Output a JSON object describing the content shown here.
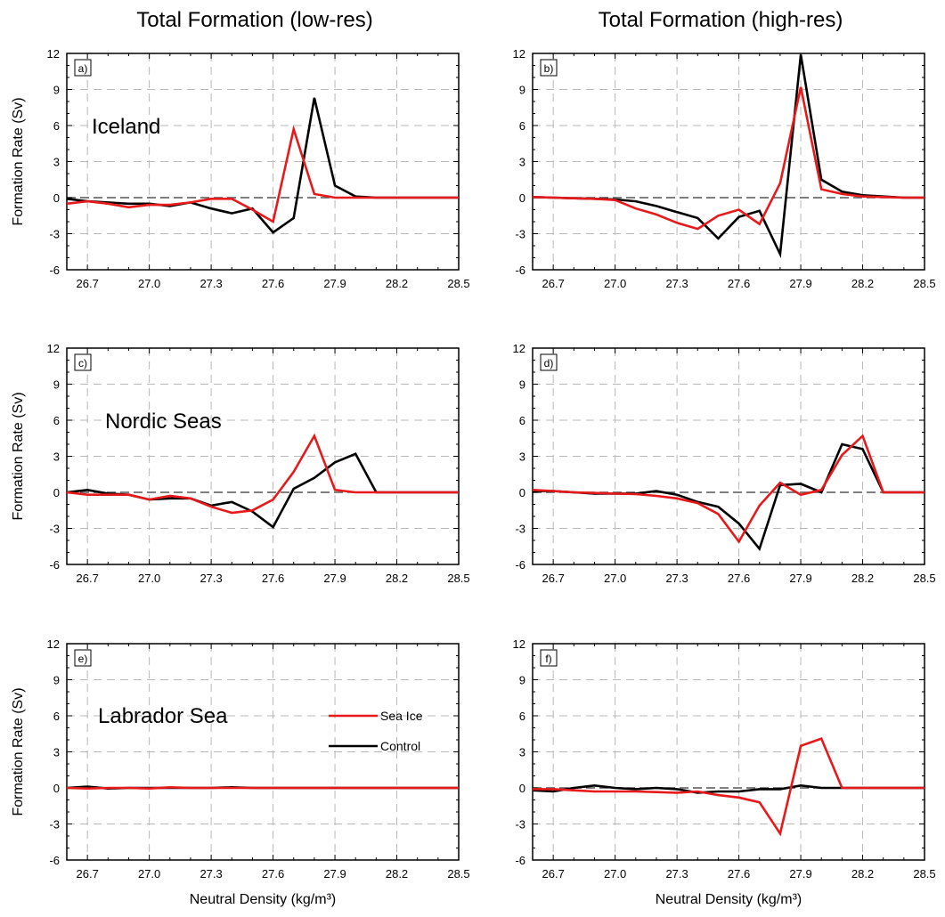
{
  "column_titles": [
    "Total Formation (low-res)",
    "Total Formation (high-res)"
  ],
  "colors": {
    "sea_ice": "#e8191a",
    "control": "#000000",
    "grid": "#b8b8b8",
    "zero_line": "#555555"
  },
  "legend": {
    "location": "panel e, right",
    "items": [
      {
        "label": "Sea Ice",
        "color": "#e8191a"
      },
      {
        "label": "Control",
        "color": "#000000"
      }
    ]
  },
  "chart_data": [
    {
      "type": "line",
      "panel": "a)",
      "region": "Iceland",
      "title": "",
      "xlabel": "",
      "ylabel": "Formation Rate (Sv)",
      "xlim": [
        26.6,
        28.5
      ],
      "ylim": [
        -6,
        12
      ],
      "xticks": [
        "26.7",
        "27.0",
        "27.3",
        "27.6",
        "27.9",
        "28.2",
        "28.5"
      ],
      "yticks": [
        "12",
        "9",
        "6",
        "3",
        "0",
        "-3",
        "-6"
      ],
      "x": [
        26.6,
        26.7,
        26.8,
        26.9,
        27.0,
        27.1,
        27.2,
        27.3,
        27.4,
        27.5,
        27.6,
        27.7,
        27.8,
        27.9,
        28.0,
        28.1,
        28.2,
        28.3,
        28.4,
        28.5
      ],
      "series": [
        {
          "name": "Sea Ice",
          "color": "#e8191a",
          "values": [
            -0.5,
            -0.3,
            -0.5,
            -0.8,
            -0.6,
            -0.6,
            -0.4,
            -0.1,
            -0.1,
            -1.0,
            -2.0,
            5.7,
            0.3,
            0,
            0,
            0,
            0,
            0,
            0,
            0
          ]
        },
        {
          "name": "Control",
          "color": "#000000",
          "values": [
            -0.1,
            -0.3,
            -0.4,
            -0.5,
            -0.5,
            -0.7,
            -0.4,
            -0.9,
            -1.3,
            -0.9,
            -2.9,
            -1.7,
            8.3,
            1.0,
            0.1,
            0,
            0,
            0,
            0,
            0
          ]
        }
      ]
    },
    {
      "type": "line",
      "panel": "b)",
      "region": "",
      "title": "",
      "xlabel": "",
      "ylabel": "",
      "xlim": [
        26.6,
        28.5
      ],
      "ylim": [
        -6,
        12
      ],
      "xticks": [
        "26.7",
        "27.0",
        "27.3",
        "27.6",
        "27.9",
        "28.2",
        "28.5"
      ],
      "yticks": [
        "12",
        "9",
        "6",
        "3",
        "0",
        "-3",
        "-6"
      ],
      "x": [
        26.6,
        26.7,
        26.8,
        26.9,
        27.0,
        27.1,
        27.2,
        27.3,
        27.4,
        27.5,
        27.6,
        27.7,
        27.8,
        27.9,
        28.0,
        28.1,
        28.2,
        28.3,
        28.4,
        28.5
      ],
      "series": [
        {
          "name": "Sea Ice",
          "color": "#e8191a",
          "values": [
            0.05,
            0.0,
            -0.05,
            -0.1,
            -0.2,
            -0.9,
            -1.4,
            -2.1,
            -2.6,
            -1.5,
            -1.0,
            -2.2,
            1.2,
            9.2,
            0.7,
            0.3,
            0.1,
            0.05,
            0,
            0
          ]
        },
        {
          "name": "Control",
          "color": "#000000",
          "values": [
            0.05,
            0.0,
            -0.05,
            -0.1,
            -0.15,
            -0.3,
            -0.7,
            -1.2,
            -1.7,
            -3.4,
            -1.6,
            -1.1,
            -4.7,
            11.9,
            1.5,
            0.5,
            0.2,
            0.1,
            0,
            0
          ]
        }
      ]
    },
    {
      "type": "line",
      "panel": "c)",
      "region": "Nordic Seas",
      "title": "",
      "xlabel": "",
      "ylabel": "Formation Rate (Sv)",
      "xlim": [
        26.6,
        28.5
      ],
      "ylim": [
        -6,
        12
      ],
      "xticks": [
        "26.7",
        "27.0",
        "27.3",
        "27.6",
        "27.9",
        "28.2",
        "28.5"
      ],
      "yticks": [
        "12",
        "9",
        "6",
        "3",
        "0",
        "-3",
        "-6"
      ],
      "x": [
        26.6,
        26.7,
        26.8,
        26.9,
        27.0,
        27.1,
        27.2,
        27.3,
        27.4,
        27.5,
        27.6,
        27.7,
        27.8,
        27.9,
        28.0,
        28.1,
        28.2,
        28.3,
        28.4,
        28.5
      ],
      "series": [
        {
          "name": "Sea Ice",
          "color": "#e8191a",
          "values": [
            0.0,
            -0.2,
            -0.2,
            -0.2,
            -0.6,
            -0.3,
            -0.5,
            -1.2,
            -1.7,
            -1.5,
            -0.6,
            1.7,
            4.7,
            0.2,
            0,
            0,
            0,
            0,
            0,
            0
          ]
        },
        {
          "name": "Control",
          "color": "#000000",
          "values": [
            0.0,
            0.2,
            -0.1,
            -0.2,
            -0.6,
            -0.5,
            -0.5,
            -1.1,
            -0.8,
            -1.6,
            -2.9,
            0.3,
            1.2,
            2.5,
            3.2,
            0.0,
            0,
            0,
            0,
            0
          ]
        }
      ]
    },
    {
      "type": "line",
      "panel": "d)",
      "region": "",
      "title": "",
      "xlabel": "",
      "ylabel": "",
      "xlim": [
        26.6,
        28.5
      ],
      "ylim": [
        -6,
        12
      ],
      "xticks": [
        "26.7",
        "27.0",
        "27.3",
        "27.6",
        "27.9",
        "28.2",
        "28.5"
      ],
      "yticks": [
        "12",
        "9",
        "6",
        "3",
        "0",
        "-3",
        "-6"
      ],
      "x": [
        26.6,
        26.7,
        26.8,
        26.9,
        27.0,
        27.1,
        27.2,
        27.3,
        27.4,
        27.5,
        27.6,
        27.7,
        27.8,
        27.9,
        28.0,
        28.1,
        28.2,
        28.3,
        28.4,
        28.5
      ],
      "series": [
        {
          "name": "Sea Ice",
          "color": "#e8191a",
          "values": [
            0.2,
            0.1,
            0.0,
            -0.05,
            -0.1,
            -0.15,
            -0.3,
            -0.5,
            -0.9,
            -1.8,
            -4.1,
            -1.1,
            0.8,
            -0.2,
            0.2,
            3.1,
            4.7,
            0.0,
            0,
            0
          ]
        },
        {
          "name": "Control",
          "color": "#000000",
          "values": [
            0.1,
            0.1,
            0.0,
            -0.1,
            -0.1,
            -0.1,
            0.1,
            -0.2,
            -0.8,
            -1.2,
            -2.6,
            -4.7,
            0.6,
            0.7,
            0.0,
            4.0,
            3.6,
            0.0,
            0,
            0
          ]
        }
      ]
    },
    {
      "type": "line",
      "panel": "e)",
      "region": "Labrador Sea",
      "title": "",
      "xlabel": "Neutral Density (kg/m³)",
      "ylabel": "Formation Rate (Sv)",
      "xlim": [
        26.6,
        28.5
      ],
      "ylim": [
        -6,
        12
      ],
      "xticks": [
        "26.7",
        "27.0",
        "27.3",
        "27.6",
        "27.9",
        "28.2",
        "28.5"
      ],
      "yticks": [
        "12",
        "9",
        "6",
        "3",
        "0",
        "-3",
        "-6"
      ],
      "x": [
        26.6,
        26.7,
        26.8,
        26.9,
        27.0,
        27.1,
        27.2,
        27.3,
        27.4,
        27.5,
        27.6,
        27.7,
        27.8,
        27.9,
        28.0,
        28.1,
        28.2,
        28.3,
        28.4,
        28.5
      ],
      "series": [
        {
          "name": "Sea Ice",
          "color": "#e8191a",
          "values": [
            0,
            -0.05,
            0,
            0,
            -0.05,
            0.05,
            0,
            0,
            0,
            0,
            0,
            0,
            0,
            0,
            0,
            0,
            0,
            0,
            0,
            0
          ]
        },
        {
          "name": "Control",
          "color": "#000000",
          "values": [
            0,
            0.1,
            -0.05,
            0,
            0,
            0,
            0,
            0,
            0.05,
            0,
            0,
            0,
            0,
            0,
            0,
            0,
            0,
            0,
            0,
            0
          ]
        }
      ]
    },
    {
      "type": "line",
      "panel": "f)",
      "region": "",
      "title": "",
      "xlabel": "Neutral Density (kg/m³)",
      "ylabel": "",
      "xlim": [
        26.6,
        28.5
      ],
      "ylim": [
        -6,
        12
      ],
      "xticks": [
        "26.7",
        "27.0",
        "27.3",
        "27.6",
        "27.9",
        "28.2",
        "28.5"
      ],
      "yticks": [
        "12",
        "9",
        "6",
        "3",
        "0",
        "-3",
        "-6"
      ],
      "x": [
        26.6,
        26.7,
        26.8,
        26.9,
        27.0,
        27.1,
        27.2,
        27.3,
        27.4,
        27.5,
        27.6,
        27.7,
        27.8,
        27.9,
        28.0,
        28.1,
        28.2,
        28.3,
        28.4,
        28.5
      ],
      "series": [
        {
          "name": "Sea Ice",
          "color": "#e8191a",
          "values": [
            -0.1,
            -0.1,
            -0.2,
            -0.3,
            -0.3,
            -0.3,
            -0.35,
            -0.4,
            -0.3,
            -0.6,
            -0.8,
            -1.2,
            -3.8,
            3.5,
            4.1,
            0.0,
            0,
            0,
            0,
            0
          ]
        },
        {
          "name": "Control",
          "color": "#000000",
          "values": [
            -0.2,
            -0.3,
            0.0,
            0.2,
            0.0,
            -0.1,
            0.0,
            -0.1,
            -0.4,
            -0.3,
            -0.3,
            -0.1,
            -0.1,
            0.2,
            0.0,
            0.0,
            0,
            0,
            0,
            0
          ]
        }
      ]
    }
  ]
}
